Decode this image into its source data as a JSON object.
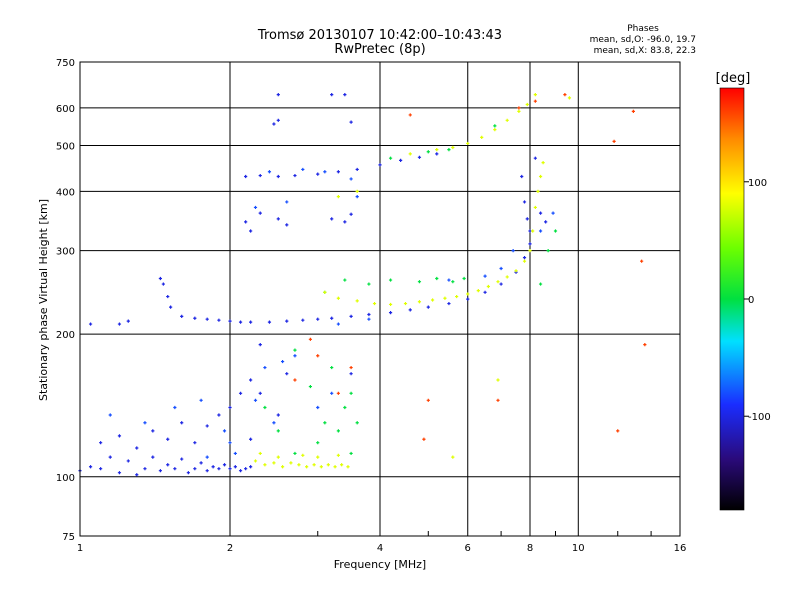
{
  "header": {
    "title_line1": "Tromsø 20130107 10:42:00–10:43:43",
    "title_line2": "RwPretec (8p)"
  },
  "stats": {
    "heading": "Phases",
    "line1": "mean, sd,O: -96.0, 19.7",
    "line2": "mean, sd,X: 83.8, 22.3"
  },
  "colorbar": {
    "unit_label": "[deg]",
    "tick_labels": [
      "100",
      "0",
      "-100"
    ],
    "tick_values": [
      100,
      0,
      -100
    ],
    "range": [
      -180,
      180
    ]
  },
  "chart_data": {
    "type": "scatter",
    "title": "Tromsø 20130107 10:42:00–10:43:43",
    "subtitle": "RwPretec (8p)",
    "xlabel": "Frequency [MHz]",
    "ylabel": "Stationary phase Virtual Height [km]",
    "xscale": "log",
    "yscale": "log",
    "xlim": [
      1,
      16
    ],
    "ylim": [
      75,
      750
    ],
    "x_ticks": [
      1,
      2,
      4,
      6,
      8,
      10,
      16
    ],
    "x_tick_labels": [
      "1",
      "2",
      "4",
      "6",
      "8",
      "10",
      "16"
    ],
    "y_ticks": [
      75,
      100,
      200,
      300,
      400,
      500,
      600,
      750
    ],
    "y_tick_labels": [
      "75",
      "100",
      "200",
      "300",
      "400",
      "500",
      "600",
      "750"
    ],
    "grid": true,
    "color_encodes": "phase [deg]",
    "series": [
      {
        "phase": -100,
        "points": [
          [
            1.0,
            103
          ],
          [
            1.05,
            105
          ],
          [
            1.1,
            104
          ],
          [
            1.15,
            110
          ],
          [
            1.2,
            102
          ],
          [
            1.25,
            108
          ],
          [
            1.3,
            101
          ],
          [
            1.35,
            104
          ],
          [
            1.4,
            110
          ],
          [
            1.45,
            103
          ],
          [
            1.5,
            106
          ],
          [
            1.55,
            104
          ],
          [
            1.6,
            109
          ],
          [
            1.65,
            102
          ],
          [
            1.7,
            104
          ],
          [
            1.75,
            107
          ],
          [
            1.8,
            103
          ],
          [
            1.85,
            105
          ],
          [
            1.9,
            104
          ],
          [
            1.95,
            106
          ],
          [
            2.0,
            104
          ],
          [
            2.05,
            105
          ],
          [
            2.1,
            103
          ],
          [
            2.15,
            104
          ],
          [
            2.2,
            105
          ],
          [
            1.1,
            118
          ],
          [
            1.2,
            122
          ],
          [
            1.3,
            115
          ],
          [
            1.4,
            125
          ],
          [
            1.5,
            120
          ],
          [
            1.6,
            130
          ],
          [
            1.7,
            118
          ],
          [
            1.8,
            128
          ],
          [
            1.9,
            135
          ],
          [
            2.0,
            140
          ],
          [
            2.1,
            150
          ],
          [
            2.2,
            160
          ],
          [
            1.05,
            210
          ],
          [
            1.2,
            210
          ],
          [
            1.25,
            213
          ],
          [
            1.45,
            262
          ],
          [
            1.47,
            255
          ],
          [
            1.5,
            240
          ],
          [
            1.52,
            228
          ],
          [
            1.6,
            218
          ],
          [
            1.7,
            216
          ],
          [
            1.8,
            215
          ],
          [
            1.9,
            214
          ],
          [
            2.0,
            213
          ],
          [
            2.1,
            212
          ],
          [
            2.2,
            212
          ],
          [
            2.4,
            212
          ],
          [
            2.6,
            213
          ],
          [
            2.8,
            214
          ],
          [
            3.0,
            215
          ],
          [
            3.2,
            216
          ],
          [
            3.5,
            218
          ],
          [
            3.8,
            220
          ],
          [
            4.2,
            222
          ],
          [
            4.6,
            225
          ],
          [
            5.0,
            228
          ],
          [
            5.5,
            232
          ],
          [
            6.0,
            237
          ],
          [
            6.5,
            245
          ],
          [
            7.0,
            255
          ],
          [
            7.5,
            270
          ],
          [
            7.8,
            290
          ],
          [
            8.0,
            310
          ],
          [
            2.15,
            430
          ],
          [
            2.3,
            432
          ],
          [
            2.5,
            430
          ],
          [
            2.7,
            432
          ],
          [
            3.0,
            435
          ],
          [
            3.3,
            440
          ],
          [
            3.6,
            445
          ],
          [
            4.0,
            455
          ],
          [
            4.4,
            465
          ],
          [
            4.8,
            472
          ],
          [
            5.2,
            480
          ],
          [
            2.15,
            345
          ],
          [
            2.2,
            330
          ],
          [
            2.3,
            360
          ],
          [
            2.5,
            350
          ],
          [
            2.6,
            340
          ],
          [
            3.2,
            350
          ],
          [
            3.4,
            345
          ],
          [
            3.5,
            358
          ],
          [
            2.45,
            555
          ],
          [
            2.5,
            565
          ],
          [
            2.5,
            640
          ],
          [
            3.2,
            640
          ],
          [
            3.4,
            640
          ],
          [
            3.5,
            560
          ],
          [
            7.7,
            430
          ],
          [
            7.8,
            380
          ],
          [
            7.9,
            350
          ],
          [
            8.0,
            330
          ],
          [
            8.2,
            470
          ],
          [
            8.4,
            360
          ],
          [
            8.6,
            345
          ],
          [
            2.2,
            120
          ],
          [
            2.3,
            150
          ],
          [
            2.5,
            135
          ],
          [
            2.6,
            165
          ],
          [
            2.3,
            190
          ],
          [
            3.5,
            165
          ]
        ]
      },
      {
        "phase": -80,
        "points": [
          [
            1.15,
            135
          ],
          [
            1.35,
            130
          ],
          [
            1.55,
            140
          ],
          [
            1.75,
            145
          ],
          [
            1.95,
            125
          ],
          [
            2.05,
            112
          ],
          [
            2.25,
            145
          ],
          [
            2.35,
            170
          ],
          [
            2.45,
            130
          ],
          [
            2.7,
            180
          ],
          [
            3.0,
            140
          ],
          [
            3.2,
            150
          ],
          [
            2.55,
            175
          ],
          [
            3.3,
            210
          ],
          [
            3.8,
            215
          ],
          [
            5.5,
            260
          ],
          [
            6.5,
            265
          ],
          [
            7.0,
            275
          ],
          [
            7.4,
            300
          ],
          [
            8.4,
            330
          ],
          [
            8.9,
            360
          ],
          [
            2.4,
            440
          ],
          [
            2.8,
            445
          ],
          [
            3.1,
            440
          ],
          [
            3.5,
            425
          ],
          [
            2.25,
            370
          ],
          [
            2.6,
            380
          ],
          [
            3.6,
            390
          ],
          [
            1.8,
            110
          ],
          [
            2.0,
            118
          ]
        ]
      },
      {
        "phase": 0,
        "points": [
          [
            2.35,
            140
          ],
          [
            2.5,
            125
          ],
          [
            2.7,
            112
          ],
          [
            2.9,
            155
          ],
          [
            3.0,
            118
          ],
          [
            3.1,
            130
          ],
          [
            3.3,
            125
          ],
          [
            3.4,
            140
          ],
          [
            3.5,
            112
          ],
          [
            3.6,
            130
          ],
          [
            3.1,
            245
          ],
          [
            3.4,
            260
          ],
          [
            3.8,
            255
          ],
          [
            4.2,
            260
          ],
          [
            4.8,
            258
          ],
          [
            5.2,
            262
          ],
          [
            5.6,
            258
          ],
          [
            5.9,
            262
          ],
          [
            8.4,
            255
          ],
          [
            8.7,
            300
          ],
          [
            9.0,
            330
          ],
          [
            4.2,
            470
          ],
          [
            5.0,
            485
          ],
          [
            5.5,
            490
          ],
          [
            2.7,
            185
          ],
          [
            3.2,
            170
          ],
          [
            3.5,
            150
          ],
          [
            6.8,
            550
          ]
        ]
      },
      {
        "phase": 80,
        "points": [
          [
            2.25,
            108
          ],
          [
            2.35,
            106
          ],
          [
            2.45,
            107
          ],
          [
            2.55,
            105
          ],
          [
            2.65,
            107
          ],
          [
            2.75,
            106
          ],
          [
            2.85,
            105
          ],
          [
            2.95,
            106
          ],
          [
            3.05,
            105
          ],
          [
            3.15,
            106
          ],
          [
            3.25,
            105
          ],
          [
            3.35,
            106
          ],
          [
            3.45,
            105
          ],
          [
            2.3,
            112
          ],
          [
            2.5,
            110
          ],
          [
            2.8,
            111
          ],
          [
            3.0,
            110
          ],
          [
            3.3,
            111
          ],
          [
            3.1,
            245
          ],
          [
            3.3,
            238
          ],
          [
            3.6,
            235
          ],
          [
            3.9,
            232
          ],
          [
            4.2,
            231
          ],
          [
            4.5,
            232
          ],
          [
            4.8,
            234
          ],
          [
            5.1,
            236
          ],
          [
            5.4,
            238
          ],
          [
            5.7,
            240
          ],
          [
            6.0,
            243
          ],
          [
            6.3,
            247
          ],
          [
            6.6,
            252
          ],
          [
            6.9,
            258
          ],
          [
            7.2,
            264
          ],
          [
            7.5,
            272
          ],
          [
            7.8,
            285
          ],
          [
            8.0,
            300
          ],
          [
            8.1,
            330
          ],
          [
            8.2,
            370
          ],
          [
            8.3,
            400
          ],
          [
            8.4,
            430
          ],
          [
            8.5,
            460
          ],
          [
            5.2,
            490
          ],
          [
            5.6,
            495
          ],
          [
            6.0,
            505
          ],
          [
            6.4,
            520
          ],
          [
            6.8,
            540
          ],
          [
            7.2,
            565
          ],
          [
            7.6,
            590
          ],
          [
            7.9,
            610
          ],
          [
            8.2,
            640
          ],
          [
            4.6,
            480
          ],
          [
            3.6,
            400
          ],
          [
            3.3,
            390
          ],
          [
            6.9,
            160
          ],
          [
            5.6,
            110
          ],
          [
            9.6,
            630
          ]
        ]
      },
      {
        "phase": 160,
        "points": [
          [
            3.0,
            180
          ],
          [
            3.3,
            150
          ],
          [
            3.5,
            170
          ],
          [
            2.7,
            160
          ],
          [
            2.9,
            195
          ],
          [
            7.6,
            600
          ],
          [
            8.2,
            620
          ],
          [
            9.4,
            640
          ],
          [
            11.8,
            510
          ],
          [
            13.4,
            285
          ],
          [
            13.6,
            190
          ],
          [
            6.9,
            145
          ],
          [
            5.0,
            145
          ],
          [
            4.9,
            120
          ],
          [
            12.0,
            125
          ],
          [
            12.9,
            590
          ],
          [
            4.6,
            580
          ]
        ]
      }
    ]
  }
}
